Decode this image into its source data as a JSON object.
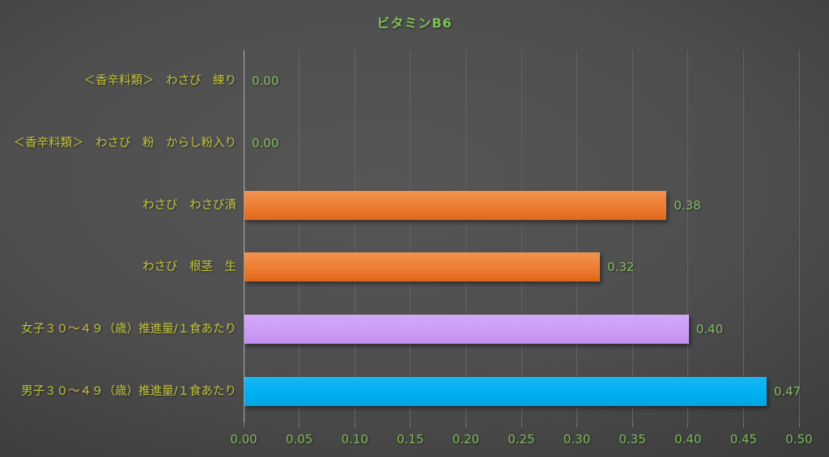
{
  "title": "ビタミンB6",
  "chart_data": {
    "type": "bar",
    "orientation": "horizontal",
    "title": "ビタミンB6",
    "categories": [
      "＜香辛料類＞　わさび　練り",
      "＜香辛料類＞　わさび　粉　からし粉入り",
      "わさび　わさび漬",
      "わさび　根茎　生",
      "女子３０～４９（歳）推進量/１食あたり",
      "男子３０～４９（歳）推進量/１食あたり"
    ],
    "values": [
      0.0,
      0.0,
      0.38,
      0.32,
      0.4,
      0.47
    ],
    "value_labels": [
      "0.00",
      "0.00",
      "0.38",
      "0.32",
      "0.40",
      "0.47"
    ],
    "bar_colors": [
      "none",
      "none",
      "orange",
      "orange",
      "purple",
      "blue"
    ],
    "xlim": [
      0.0,
      0.5
    ],
    "x_tick_step": 0.05,
    "x_tick_labels": [
      "0.00",
      "0.05",
      "0.10",
      "0.15",
      "0.20",
      "0.25",
      "0.30",
      "0.35",
      "0.40",
      "0.45",
      "0.50"
    ],
    "grid": "vertical-gridlines",
    "legend": "none"
  },
  "colors": {
    "background_center": "#565656",
    "background_edge": "#252525",
    "title_text": "#7CC353",
    "category_text": "#C3C63C",
    "value_text": "#85BD61",
    "tick_text": "#7CBC5B",
    "axis_line": "#AEAEAE",
    "gridline": "#646464",
    "tick_mark": "#7A7A7A",
    "orange": {
      "top": "#F29350",
      "base": "#ED7D31",
      "bottom": "#E0661B"
    },
    "purple": {
      "top": "#D3A8F8",
      "base": "#CB9DF6",
      "bottom": "#C48EF2"
    },
    "blue": {
      "top": "#18B7F3",
      "base": "#00B0F0",
      "bottom": "#00A5E2"
    }
  }
}
